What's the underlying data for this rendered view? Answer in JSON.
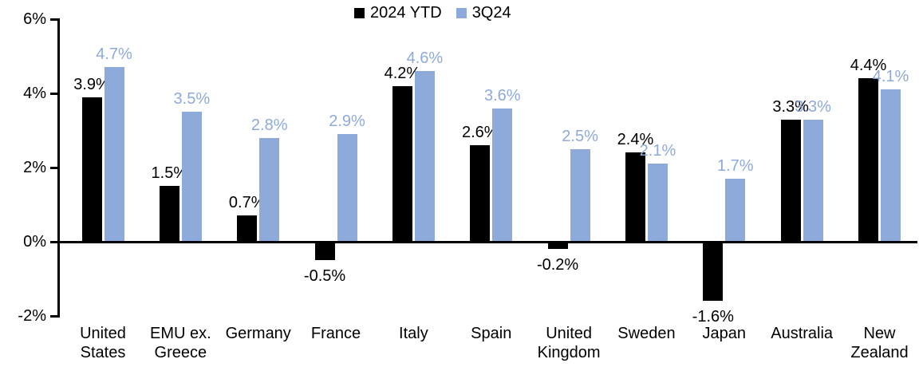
{
  "chart_data": {
    "type": "bar",
    "title": "",
    "categories": [
      "United\nStates",
      "EMU ex.\nGreece",
      "Germany",
      "France",
      "Italy",
      "Spain",
      "United\nKingdom",
      "Sweden",
      "Japan",
      "Australia",
      "New\nZealand"
    ],
    "series": [
      {
        "name": "2024 YTD",
        "color": "#000000",
        "values": [
          3.9,
          1.5,
          0.7,
          -0.5,
          4.2,
          2.6,
          -0.2,
          2.4,
          -1.6,
          3.3,
          4.4
        ]
      },
      {
        "name": "3Q24",
        "color": "#8EAADB",
        "values": [
          4.7,
          3.5,
          2.8,
          2.9,
          4.6,
          3.6,
          2.5,
          2.1,
          1.7,
          3.3,
          4.1
        ]
      }
    ],
    "ylim": [
      -2,
      6
    ],
    "yticks": [
      6,
      4,
      2,
      0,
      -2
    ],
    "ytick_suffix": "%",
    "value_label_suffix": "%",
    "value_label_decimals": 1,
    "legend_position": "top-center",
    "grid": false,
    "axis_color": "#000000",
    "background": "#FFFFFF"
  }
}
